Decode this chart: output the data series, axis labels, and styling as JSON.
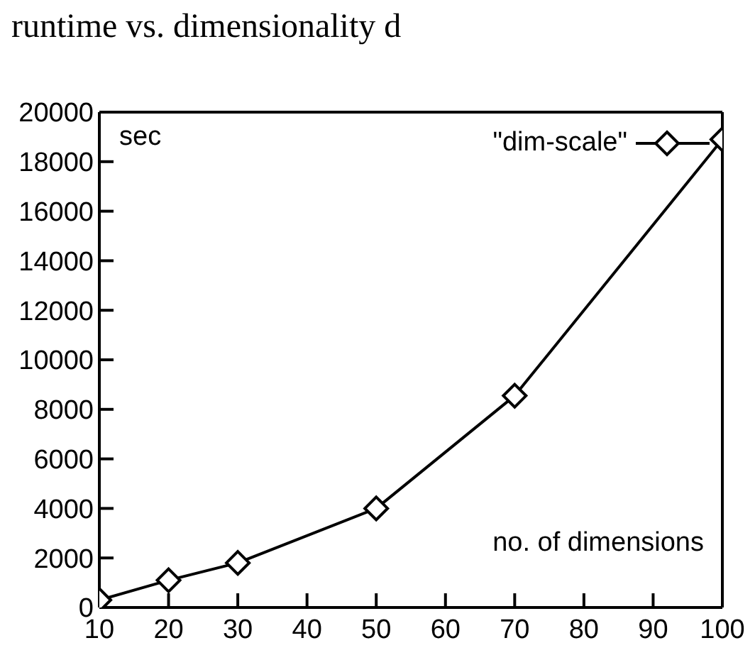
{
  "chart_data": {
    "type": "line",
    "title": "runtime vs. dimensionality d",
    "xlabel": "no. of dimensions",
    "ylabel": "sec",
    "x": [
      10,
      20,
      30,
      50,
      70,
      100
    ],
    "series": [
      {
        "name": "\"dim-scale\"",
        "color": "#000000",
        "values": [
          300,
          1100,
          1800,
          4000,
          8550,
          18900
        ]
      }
    ],
    "xlim": [
      10,
      100
    ],
    "xticks": [
      10,
      20,
      30,
      40,
      50,
      60,
      70,
      80,
      90,
      100
    ],
    "ylim": [
      0,
      20000
    ],
    "yticks": [
      0,
      2000,
      4000,
      6000,
      8000,
      10000,
      12000,
      14000,
      16000,
      18000,
      20000
    ],
    "grid": false,
    "legend": "top right",
    "marker": "diamond",
    "line_style": "solid"
  }
}
